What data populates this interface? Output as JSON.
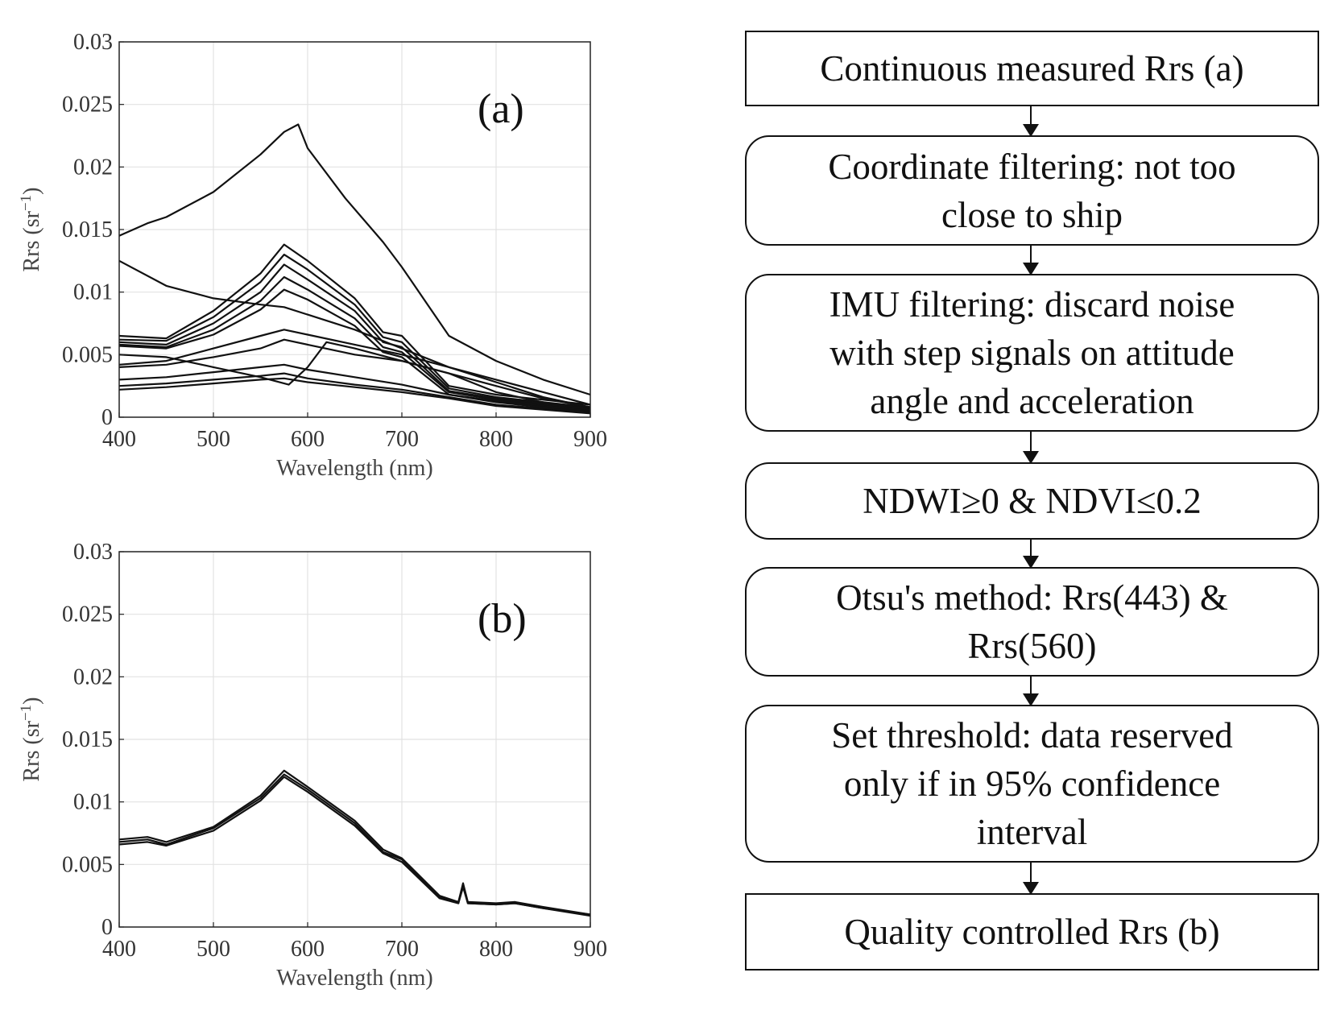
{
  "plots": [
    {
      "panel_label": "(a)",
      "ylabel_main": "Rrs (sr",
      "ylabel_sup": "−1",
      "ylabel_close": ")",
      "xlabel": "Wavelength (nm)",
      "xticks": [
        "400",
        "500",
        "600",
        "700",
        "800",
        "900"
      ],
      "yticks": [
        "0",
        "0.005",
        "0.01",
        "0.015",
        "0.02",
        "0.025",
        "0.03"
      ]
    },
    {
      "panel_label": "(b)",
      "ylabel_main": "Rrs (sr",
      "ylabel_sup": "−1",
      "ylabel_close": ")",
      "xlabel": "Wavelength (nm)",
      "xticks": [
        "400",
        "500",
        "600",
        "700",
        "800",
        "900"
      ],
      "yticks": [
        "0",
        "0.005",
        "0.01",
        "0.015",
        "0.02",
        "0.025",
        "0.03"
      ]
    }
  ],
  "chart_data": [
    {
      "type": "line",
      "xlim": [
        400,
        900
      ],
      "ylim": [
        0,
        0.03
      ],
      "grid": true,
      "series": [
        {
          "x": [
            400,
            430,
            450,
            500,
            550,
            575,
            590,
            600,
            640,
            680,
            700,
            750,
            800,
            850,
            900
          ],
          "y": [
            0.0145,
            0.0155,
            0.016,
            0.018,
            0.021,
            0.0228,
            0.0234,
            0.0215,
            0.0175,
            0.014,
            0.012,
            0.0065,
            0.0045,
            0.003,
            0.0018
          ]
        },
        {
          "x": [
            400,
            450,
            500,
            550,
            575,
            600,
            650,
            680,
            700,
            750,
            800,
            850,
            900
          ],
          "y": [
            0.0065,
            0.0063,
            0.0085,
            0.0115,
            0.0138,
            0.0125,
            0.0095,
            0.0068,
            0.0065,
            0.0025,
            0.0018,
            0.0014,
            0.001
          ]
        },
        {
          "x": [
            400,
            450,
            500,
            550,
            575,
            600,
            650,
            680,
            700,
            750,
            800,
            850,
            900
          ],
          "y": [
            0.0062,
            0.0061,
            0.008,
            0.0108,
            0.013,
            0.0118,
            0.009,
            0.0064,
            0.006,
            0.0023,
            0.0016,
            0.0012,
            0.0008
          ]
        },
        {
          "x": [
            400,
            450,
            500,
            550,
            575,
            600,
            650,
            680,
            700,
            750,
            800,
            850,
            900
          ],
          "y": [
            0.006,
            0.0058,
            0.0075,
            0.01,
            0.0122,
            0.011,
            0.0085,
            0.006,
            0.0056,
            0.0021,
            0.0015,
            0.0011,
            0.0007
          ]
        },
        {
          "x": [
            400,
            450,
            500,
            550,
            575,
            600,
            650,
            680,
            700,
            750,
            800,
            850,
            900
          ],
          "y": [
            0.0058,
            0.0056,
            0.007,
            0.0093,
            0.0112,
            0.0102,
            0.0079,
            0.0056,
            0.0052,
            0.002,
            0.0014,
            0.001,
            0.0006
          ]
        },
        {
          "x": [
            400,
            450,
            500,
            550,
            575,
            600,
            650,
            680,
            700,
            750,
            800,
            850,
            900
          ],
          "y": [
            0.0057,
            0.0055,
            0.0066,
            0.0086,
            0.0102,
            0.0094,
            0.0073,
            0.0052,
            0.0048,
            0.0018,
            0.0013,
            0.0009,
            0.0005
          ]
        },
        {
          "x": [
            400,
            450,
            500,
            550,
            575,
            600,
            650,
            700,
            750,
            800,
            850,
            900
          ],
          "y": [
            0.0125,
            0.0105,
            0.0095,
            0.009,
            0.0088,
            0.0082,
            0.007,
            0.0055,
            0.004,
            0.003,
            0.002,
            0.001
          ]
        },
        {
          "x": [
            400,
            450,
            500,
            550,
            575,
            600,
            650,
            700,
            750,
            800,
            850,
            900
          ],
          "y": [
            0.0042,
            0.0045,
            0.0055,
            0.0065,
            0.007,
            0.0066,
            0.0058,
            0.005,
            0.004,
            0.0028,
            0.0016,
            0.0008
          ]
        },
        {
          "x": [
            400,
            450,
            500,
            550,
            575,
            600,
            650,
            700,
            750,
            800,
            850,
            900
          ],
          "y": [
            0.004,
            0.0042,
            0.0048,
            0.0055,
            0.0062,
            0.0058,
            0.005,
            0.0045,
            0.0035,
            0.002,
            0.0012,
            0.0006
          ]
        },
        {
          "x": [
            400,
            450,
            500,
            550,
            575,
            600,
            650,
            700,
            750,
            800,
            850,
            900
          ],
          "y": [
            0.003,
            0.0032,
            0.0036,
            0.004,
            0.0042,
            0.0038,
            0.0032,
            0.0026,
            0.0018,
            0.0012,
            0.0008,
            0.0004
          ]
        },
        {
          "x": [
            400,
            450,
            500,
            550,
            575,
            600,
            650,
            700,
            750,
            800,
            850,
            900
          ],
          "y": [
            0.0025,
            0.0027,
            0.003,
            0.0033,
            0.0035,
            0.0031,
            0.0026,
            0.0022,
            0.0016,
            0.001,
            0.0007,
            0.0004
          ]
        },
        {
          "x": [
            400,
            450,
            500,
            550,
            575,
            600,
            650,
            700,
            750,
            800,
            850,
            900
          ],
          "y": [
            0.0022,
            0.0024,
            0.0027,
            0.003,
            0.0031,
            0.0028,
            0.0024,
            0.002,
            0.0015,
            0.0009,
            0.0006,
            0.0003
          ]
        },
        {
          "x": [
            400,
            450,
            500,
            550,
            580,
            600,
            620,
            650,
            700,
            750,
            800,
            850,
            900
          ],
          "y": [
            0.005,
            0.0048,
            0.004,
            0.0032,
            0.0026,
            0.004,
            0.006,
            0.0055,
            0.0045,
            0.0035,
            0.0025,
            0.0015,
            0.0008
          ]
        }
      ]
    },
    {
      "type": "line",
      "xlim": [
        400,
        900
      ],
      "ylim": [
        0,
        0.03
      ],
      "grid": true,
      "series": [
        {
          "x": [
            400,
            430,
            450,
            500,
            550,
            575,
            600,
            650,
            680,
            700,
            740,
            760,
            765,
            770,
            800,
            820,
            850,
            900
          ],
          "y": [
            0.007,
            0.0072,
            0.0068,
            0.008,
            0.0105,
            0.0125,
            0.0112,
            0.0085,
            0.0062,
            0.0055,
            0.0025,
            0.002,
            0.0035,
            0.002,
            0.0019,
            0.002,
            0.0016,
            0.001
          ]
        },
        {
          "x": [
            400,
            430,
            450,
            500,
            550,
            575,
            600,
            650,
            680,
            700,
            740,
            760,
            765,
            770,
            800,
            820,
            850,
            900
          ],
          "y": [
            0.0066,
            0.0068,
            0.0065,
            0.0077,
            0.0101,
            0.012,
            0.0108,
            0.0081,
            0.0059,
            0.0052,
            0.0023,
            0.0019,
            0.0032,
            0.0019,
            0.0018,
            0.0019,
            0.0015,
            0.0009
          ]
        },
        {
          "x": [
            400,
            430,
            450,
            500,
            550,
            575,
            600,
            650,
            680,
            700,
            740,
            760,
            765,
            770,
            800,
            820,
            850,
            900
          ],
          "y": [
            0.0068,
            0.007,
            0.0066,
            0.0079,
            0.0103,
            0.0122,
            0.011,
            0.0083,
            0.006,
            0.0054,
            0.0024,
            0.0019,
            0.0034,
            0.0019,
            0.0018,
            0.0019,
            0.0015,
            0.001
          ]
        }
      ]
    }
  ],
  "flowchart": {
    "steps": [
      {
        "lines": [
          "Continuous measured Rrs (a)"
        ]
      },
      {
        "lines": [
          "Coordinate filtering: not too",
          "close to ship"
        ]
      },
      {
        "lines": [
          "IMU filtering: discard noise",
          "with step signals on attitude",
          "angle and acceleration"
        ]
      },
      {
        "lines": [
          "NDWI≥0 & NDVI≤0.2"
        ]
      },
      {
        "lines": [
          "Otsu's method: Rrs(443) &",
          "Rrs(560)"
        ]
      },
      {
        "lines": [
          "Set threshold: data reserved",
          "only if in 95% confidence",
          "interval"
        ]
      },
      {
        "lines": [
          "Quality controlled Rrs (b)"
        ]
      }
    ]
  }
}
